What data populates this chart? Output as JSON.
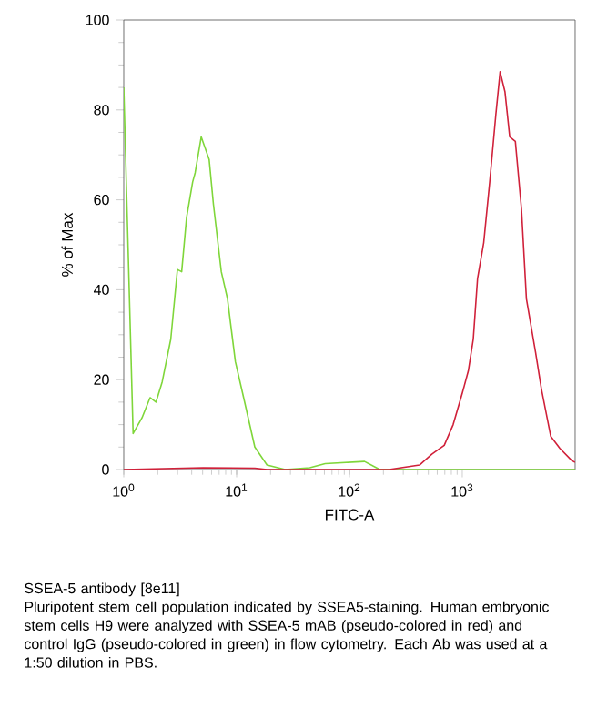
{
  "chart_data": {
    "type": "line",
    "xlabel": "FITC-A",
    "ylabel": "% of Max",
    "log": "x",
    "xlim": [
      1,
      10000
    ],
    "ylim": [
      0,
      100
    ],
    "xticks": [
      {
        "value": 1,
        "label": "10$^{0}$"
      },
      {
        "value": 10,
        "label": "10$^{1}$"
      },
      {
        "value": 100,
        "label": "10$^{2}$"
      },
      {
        "value": 1000,
        "label": "10$^{3}$"
      }
    ],
    "yticks": [
      0,
      20,
      40,
      60,
      80,
      100
    ],
    "series": [
      {
        "color": "#7fd63a",
        "x": [
          1,
          1.21,
          1.45,
          1.71,
          1.93,
          2.19,
          2.61,
          2.99,
          3.26,
          3.6,
          4.08,
          4.29,
          4.86,
          5.71,
          6.23,
          7.32,
          8.3,
          9.75,
          11.3,
          14.5,
          18.6,
          27,
          44.5,
          60.9,
          136,
          186,
          477,
          10000
        ],
        "values": [
          85,
          8,
          11.5,
          16,
          15,
          19.5,
          29,
          44.5,
          44,
          56,
          64,
          66,
          74,
          69,
          59,
          44,
          38,
          24,
          17,
          5,
          1,
          0,
          0.4,
          1.3,
          1.8,
          0,
          0,
          0
        ]
      },
      {
        "color": "#d0213a",
        "x": [
          1,
          5.04,
          14.5,
          18.6,
          224,
          418,
          537,
          692,
          830,
          1000,
          1132,
          1251,
          1365,
          1549,
          1750,
          1983,
          2163,
          2390,
          2632,
          2952,
          3345,
          3700,
          4467,
          5020,
          6080,
          7330,
          9340,
          10000
        ],
        "values": [
          0,
          0.4,
          0.3,
          0,
          0,
          1,
          3.4,
          5.4,
          10,
          17,
          22,
          29,
          42.5,
          50.5,
          64,
          79,
          88.5,
          84,
          74,
          73,
          58,
          38,
          26,
          18,
          7.4,
          4.7,
          2,
          1.6
        ]
      }
    ],
    "annotations": [
      "SSEA-5 antibody [8e11]",
      "Pluripotent stem cell population indicated by SSEA5-staining. Human embryonic stem cells H9 were analyzed with SSEA-5 mAB (pseudo-colored in red) and control IgG (pseudo-colored in green) in flow cytometry. Each Ab was used at a 1:50 dilution in PBS."
    ]
  }
}
